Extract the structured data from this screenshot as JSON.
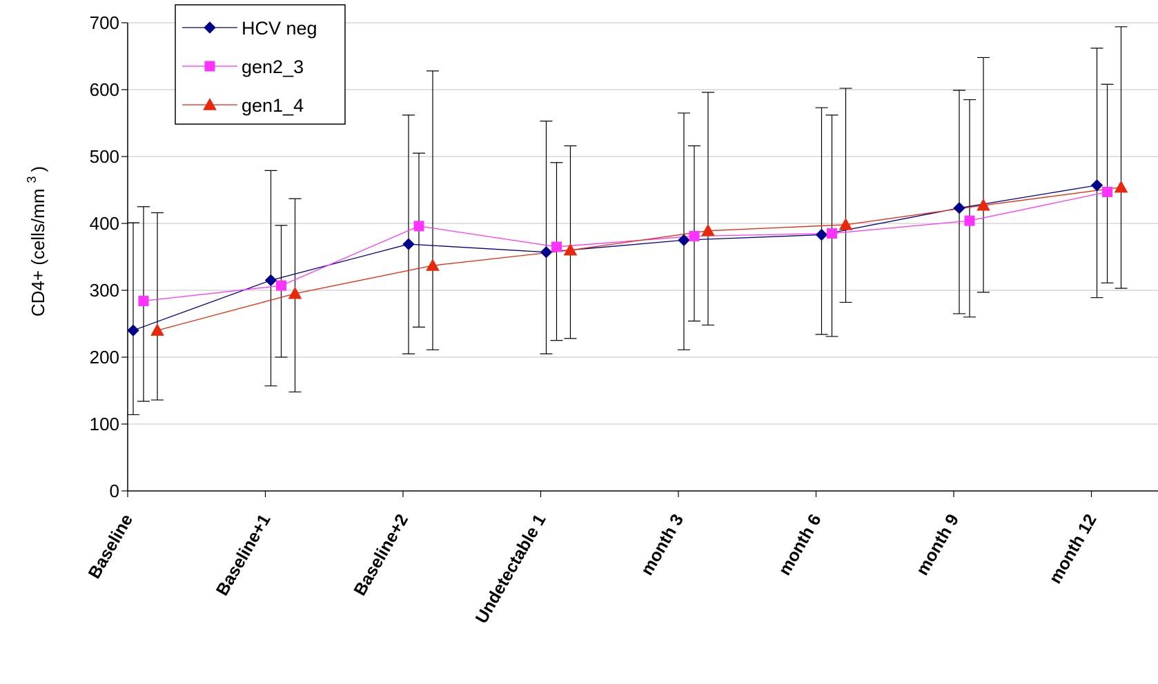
{
  "chart_data": {
    "type": "line",
    "categories": [
      "Baseline",
      "Baseline+1",
      "Baseline+2",
      "Undetectable 1",
      "month 3",
      "month 6",
      "month 9",
      "month 12"
    ],
    "ylabel": "CD4+ (cells/mm",
    "ylabel_sup": "3",
    "ylabel_close": ")",
    "ylim": [
      0,
      700
    ],
    "yticks": [
      0,
      100,
      200,
      300,
      400,
      500,
      600,
      700
    ],
    "grid": true,
    "legend_position": "top-left",
    "series": [
      {
        "name": "HCV neg",
        "color": "#00008B",
        "marker": "diamond",
        "values": [
          240,
          315,
          369,
          357,
          375,
          383,
          423,
          457
        ],
        "err_low": [
          114,
          157,
          205,
          205,
          211,
          234,
          265,
          289
        ],
        "err_high": [
          401,
          479,
          562,
          553,
          565,
          573,
          599,
          662
        ]
      },
      {
        "name": "gen2_3",
        "color": "#FF33FF",
        "marker": "square",
        "values": [
          284,
          307,
          396,
          365,
          381,
          385,
          404,
          447
        ],
        "err_low": [
          134,
          200,
          245,
          225,
          254,
          231,
          260,
          311
        ],
        "err_high": [
          425,
          397,
          505,
          491,
          516,
          562,
          585,
          608
        ]
      },
      {
        "name": "gen1_4",
        "color": "#E8280A",
        "marker": "triangle",
        "values": [
          240,
          295,
          337,
          360,
          389,
          398,
          427,
          454
        ],
        "err_low": [
          136,
          148,
          211,
          228,
          248,
          282,
          297,
          303
        ],
        "err_high": [
          416,
          437,
          628,
          516,
          596,
          602,
          648,
          694
        ]
      }
    ]
  }
}
